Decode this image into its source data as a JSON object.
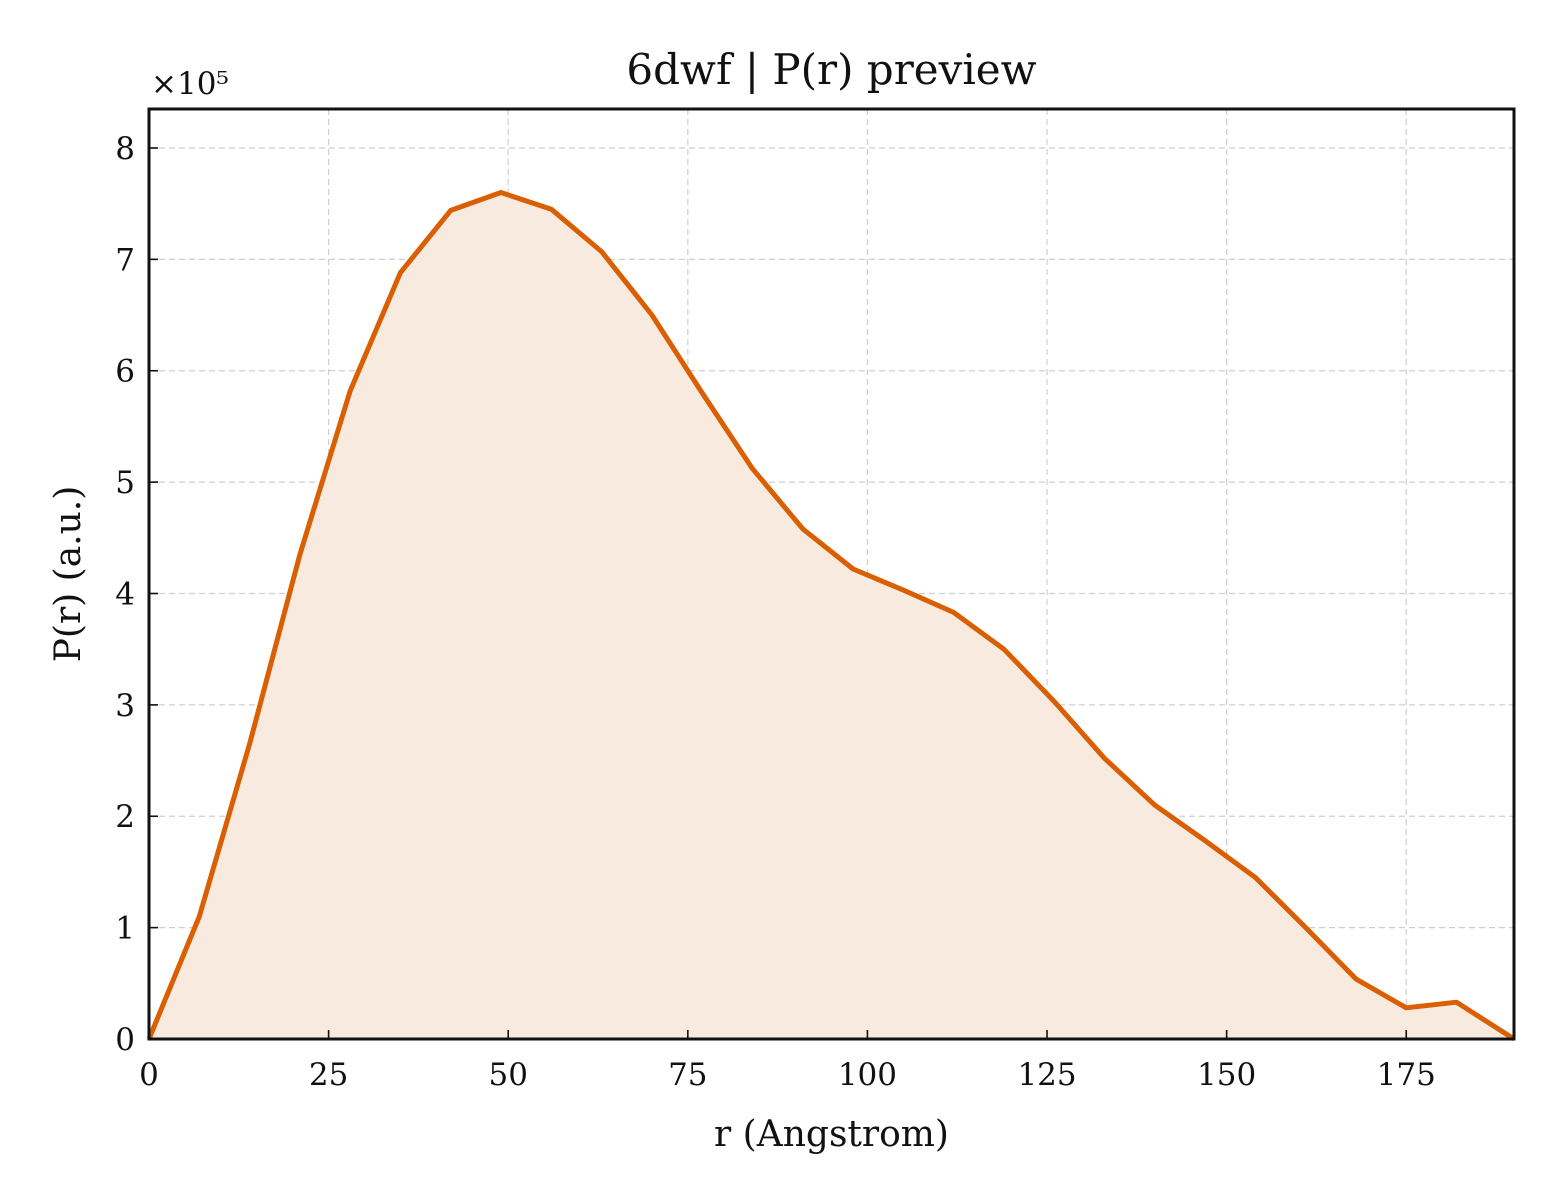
{
  "chart_data": {
    "type": "area",
    "title": "6dwf | P(r) preview",
    "xlabel": "r (Angstrom)",
    "ylabel": "P(r) (a.u.)",
    "y_multiplier_label": "×10⁵",
    "xlim": [
      0,
      190
    ],
    "ylim": [
      0,
      8.35
    ],
    "x_ticks": [
      0,
      25,
      50,
      75,
      100,
      125,
      150,
      175
    ],
    "y_ticks": [
      0,
      1,
      2,
      3,
      4,
      5,
      6,
      7,
      8
    ],
    "grid": true,
    "line_color": "#d95f02",
    "fill_color": "#f9eadf",
    "series": [
      {
        "x": [
          0,
          7,
          14,
          21,
          28,
          35,
          42,
          49,
          56,
          63,
          70,
          77,
          84,
          91,
          98,
          105,
          112,
          119,
          126,
          133,
          140,
          147,
          154,
          161,
          168,
          175,
          182,
          190
        ],
        "y": [
          0,
          1.1,
          2.65,
          4.35,
          5.82,
          6.88,
          7.44,
          7.6,
          7.45,
          7.07,
          6.5,
          5.8,
          5.12,
          4.58,
          4.22,
          4.03,
          3.83,
          3.5,
          3.03,
          2.52,
          2.1,
          1.78,
          1.45,
          1.0,
          0.54,
          0.28,
          0.33,
          0
        ]
      }
    ]
  }
}
